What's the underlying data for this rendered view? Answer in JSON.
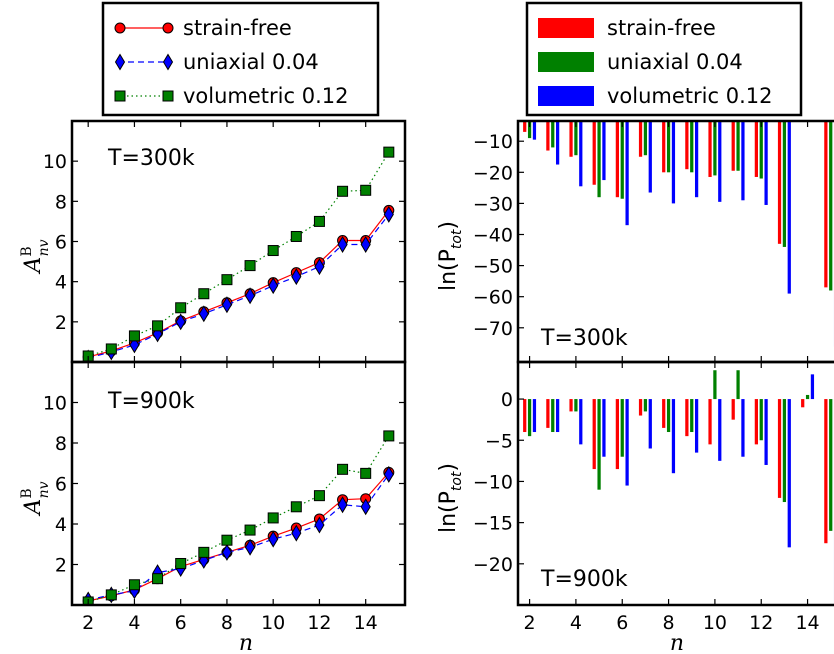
{
  "chart_data": [
    {
      "id": "a_T300",
      "type": "line",
      "panel_label": "T=300k",
      "xlabel": "",
      "ylabel": "",
      "x": [
        2,
        3,
        4,
        5,
        6,
        7,
        8,
        9,
        10,
        11,
        12,
        13,
        14,
        15
      ],
      "xlim": [
        1.3,
        15.7
      ],
      "ylim": [
        0,
        12
      ],
      "yticks": [
        2,
        4,
        6,
        8,
        10
      ],
      "series": [
        {
          "name": "strain-free",
          "color": "#ff0000",
          "marker": "circle",
          "linestyle": "solid",
          "values": [
            0.25,
            0.55,
            0.95,
            1.45,
            2.05,
            2.5,
            2.95,
            3.4,
            3.95,
            4.45,
            4.95,
            6.05,
            6.05,
            7.55
          ]
        },
        {
          "name": "uniaxial 0.04",
          "color": "#0000ff",
          "marker": "diamond",
          "linestyle": "dashed",
          "values": [
            0.2,
            0.5,
            0.85,
            1.4,
            2.0,
            2.4,
            2.85,
            3.3,
            3.8,
            4.25,
            4.75,
            5.85,
            5.85,
            7.35
          ]
        },
        {
          "name": "volumetric 0.12",
          "color": "#008000",
          "marker": "square",
          "linestyle": "dotted",
          "values": [
            0.3,
            0.65,
            1.3,
            1.8,
            2.7,
            3.4,
            4.1,
            4.8,
            5.55,
            6.25,
            7.0,
            8.5,
            8.55,
            10.45
          ]
        }
      ]
    },
    {
      "id": "a_T900",
      "type": "line",
      "panel_label": "T=900k",
      "xlabel": "n",
      "ylabel": "",
      "x": [
        2,
        3,
        4,
        5,
        6,
        7,
        8,
        9,
        10,
        11,
        12,
        13,
        14,
        15
      ],
      "xlim": [
        1.3,
        15.7
      ],
      "ylim": [
        0,
        12
      ],
      "yticks": [
        2,
        4,
        6,
        8,
        10
      ],
      "xticks": [
        2,
        4,
        6,
        8,
        10,
        12,
        14
      ],
      "series": [
        {
          "name": "strain-free",
          "color": "#ff0000",
          "marker": "circle",
          "linestyle": "solid",
          "values": [
            0.2,
            0.45,
            0.75,
            1.3,
            1.9,
            2.25,
            2.6,
            2.95,
            3.4,
            3.8,
            4.25,
            5.2,
            5.25,
            6.55
          ]
        },
        {
          "name": "uniaxial 0.04",
          "color": "#0000ff",
          "marker": "diamond",
          "linestyle": "dashed",
          "values": [
            0.25,
            0.5,
            0.7,
            1.6,
            1.8,
            2.2,
            2.6,
            2.85,
            3.25,
            3.55,
            3.95,
            4.95,
            4.85,
            6.45
          ]
        },
        {
          "name": "volumetric 0.12",
          "color": "#008000",
          "marker": "square",
          "linestyle": "dotted",
          "values": [
            0.15,
            0.5,
            1.0,
            1.3,
            2.05,
            2.6,
            3.2,
            3.7,
            4.3,
            4.85,
            5.4,
            6.7,
            6.5,
            8.35
          ]
        }
      ]
    },
    {
      "id": "lnP_T300",
      "type": "bar",
      "panel_label": "T=300k",
      "xlabel": "",
      "ylabel": "ln(P_tot)",
      "x": [
        2,
        3,
        4,
        5,
        6,
        7,
        8,
        9,
        10,
        11,
        12,
        13,
        14,
        15
      ],
      "xlim": [
        1.5,
        15.4
      ],
      "ylim": [
        -81,
        -3.5
      ],
      "yticks": [
        -10,
        -20,
        -30,
        -40,
        -50,
        -60,
        -70
      ],
      "series": [
        {
          "name": "strain-free",
          "color": "#ff0000",
          "values": [
            -7,
            -13,
            -15,
            -24,
            -28,
            -15,
            -20,
            -19,
            -21.5,
            -19.5,
            -21.5,
            -43,
            -2.5,
            -57
          ]
        },
        {
          "name": "uniaxial 0.04",
          "color": "#008000",
          "values": [
            -9,
            -12,
            -14.5,
            -28,
            -28.5,
            -14.5,
            -20,
            -20,
            -21,
            -19.5,
            -22,
            -44,
            -2,
            -58
          ]
        },
        {
          "name": "volumetric 0.12",
          "color": "#0000ff",
          "values": [
            -9.5,
            -17.5,
            -24.5,
            -22.5,
            -37,
            -26.5,
            -30,
            -28,
            -29.5,
            -29,
            -30.5,
            -59,
            -3,
            -76
          ]
        }
      ]
    },
    {
      "id": "lnP_T900",
      "type": "bar",
      "panel_label": "T=900k",
      "xlabel": "n",
      "ylabel": "ln(P_tot)",
      "x": [
        2,
        3,
        4,
        5,
        6,
        7,
        8,
        9,
        10,
        11,
        12,
        13,
        14,
        15
      ],
      "xlim": [
        1.5,
        15.4
      ],
      "ylim": [
        -25,
        4.5
      ],
      "yticks": [
        0,
        -5,
        -10,
        -15,
        -20
      ],
      "xticks": [
        2,
        4,
        6,
        8,
        10,
        12,
        14
      ],
      "series": [
        {
          "name": "strain-free",
          "color": "#ff0000",
          "values": [
            -4,
            -3.5,
            -1.5,
            -8.5,
            -8.5,
            -2,
            -3.5,
            -4.5,
            -5.5,
            -2.5,
            -5.5,
            -12,
            -1,
            -17.5
          ]
        },
        {
          "name": "uniaxial 0.04",
          "color": "#008000",
          "values": [
            -4.5,
            -4,
            -1.5,
            -11,
            -7,
            -1.5,
            -4,
            -4,
            3.5,
            3.5,
            -5,
            -12.5,
            0.5,
            -16
          ]
        },
        {
          "name": "volumetric 0.12",
          "color": "#0000ff",
          "values": [
            -4,
            -4,
            -5.5,
            -7,
            -10.5,
            -6,
            -9,
            -6.5,
            -7.5,
            -7,
            -8,
            -18,
            3,
            -25
          ]
        }
      ]
    }
  ],
  "legend_left": {
    "items": [
      {
        "label": "strain-free",
        "color": "#ff0000",
        "marker": "circle",
        "linestyle": "solid"
      },
      {
        "label": "uniaxial 0.04",
        "color": "#0000ff",
        "marker": "diamond",
        "linestyle": "dashed"
      },
      {
        "label": "volumetric 0.12",
        "color": "#008000",
        "marker": "square",
        "linestyle": "dotted"
      }
    ]
  },
  "legend_right": {
    "items": [
      {
        "label": "strain-free",
        "color": "#ff0000"
      },
      {
        "label": "uniaxial 0.04",
        "color": "#008000"
      },
      {
        "label": "volumetric 0.12",
        "color": "#0000ff"
      }
    ]
  },
  "labels": {
    "left_ylabel_base": "A",
    "left_ylabel_sup": "B",
    "left_ylabel_sub": "nv",
    "right_ylabel_base": "ln(P",
    "right_ylabel_sub": "tot",
    "right_ylabel_close": ")",
    "xlabel": "n"
  }
}
